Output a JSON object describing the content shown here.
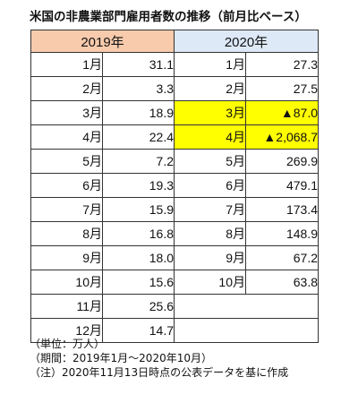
{
  "title": "米国の非農業部門雇用者数の推移（前月比ベース）",
  "headers": {
    "y2019": "2019年",
    "y2020": "2020年"
  },
  "rows": [
    {
      "m2019": "1月",
      "v2019": "31.1",
      "m2020": "1月",
      "v2020": "27.3"
    },
    {
      "m2019": "2月",
      "v2019": "3.3",
      "m2020": "2月",
      "v2020": "27.5"
    },
    {
      "m2019": "3月",
      "v2019": "18.9",
      "m2020": "3月",
      "v2020": "▲87.0"
    },
    {
      "m2019": "4月",
      "v2019": "22.4",
      "m2020": "4月",
      "v2020": "▲2,068.7"
    },
    {
      "m2019": "5月",
      "v2019": "7.2",
      "m2020": "5月",
      "v2020": "269.9"
    },
    {
      "m2019": "6月",
      "v2019": "19.3",
      "m2020": "6月",
      "v2020": "479.1"
    },
    {
      "m2019": "7月",
      "v2019": "15.9",
      "m2020": "7月",
      "v2020": "173.4"
    },
    {
      "m2019": "8月",
      "v2019": "16.8",
      "m2020": "8月",
      "v2020": "148.9"
    },
    {
      "m2019": "9月",
      "v2019": "18.0",
      "m2020": "9月",
      "v2020": "67.2"
    },
    {
      "m2019": "10月",
      "v2019": "15.6",
      "m2020": "10月",
      "v2020": "63.8"
    },
    {
      "m2019": "11月",
      "v2019": "25.6"
    },
    {
      "m2019": "12月",
      "v2019": "14.7"
    }
  ],
  "notes": {
    "unit": "（単位：万人）",
    "period": "（期間：2019年1月～2020年10月）",
    "source": "（注）2020年11月13日時点の公表データを基に作成"
  },
  "colors": {
    "header2019": "#f8cbad",
    "header2020": "#dde9f7",
    "highlight": "#ffff00"
  }
}
